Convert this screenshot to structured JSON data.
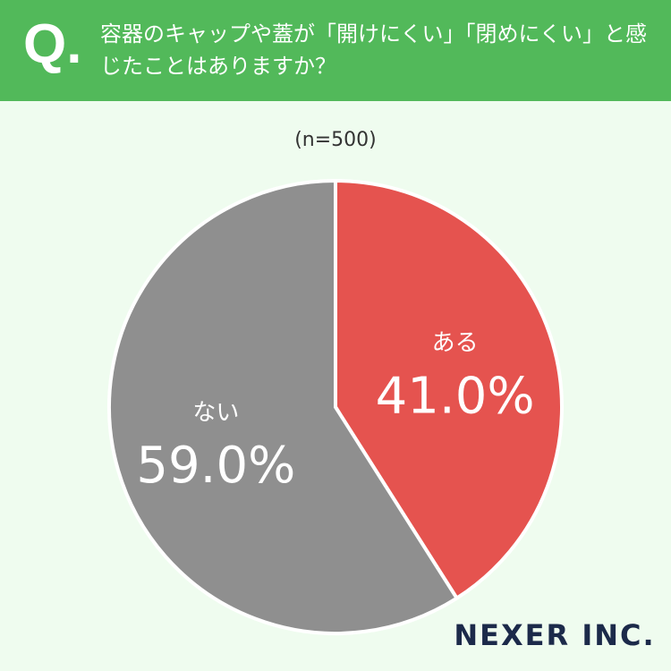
{
  "chart_data": {
    "type": "pie",
    "question_label": "Q.",
    "title": "容器のキャップや蓋が「開けにくい」「閉めにくい」と感じたことはありますか？",
    "subtitle": "(n=500)",
    "categories": [
      "ある",
      "ない"
    ],
    "values": [
      41.0,
      59.0
    ],
    "value_labels": [
      "41.0%",
      "59.0%"
    ],
    "colors": [
      "#e5534f",
      "#8f8f8f"
    ],
    "logo": "NEXER INC."
  }
}
